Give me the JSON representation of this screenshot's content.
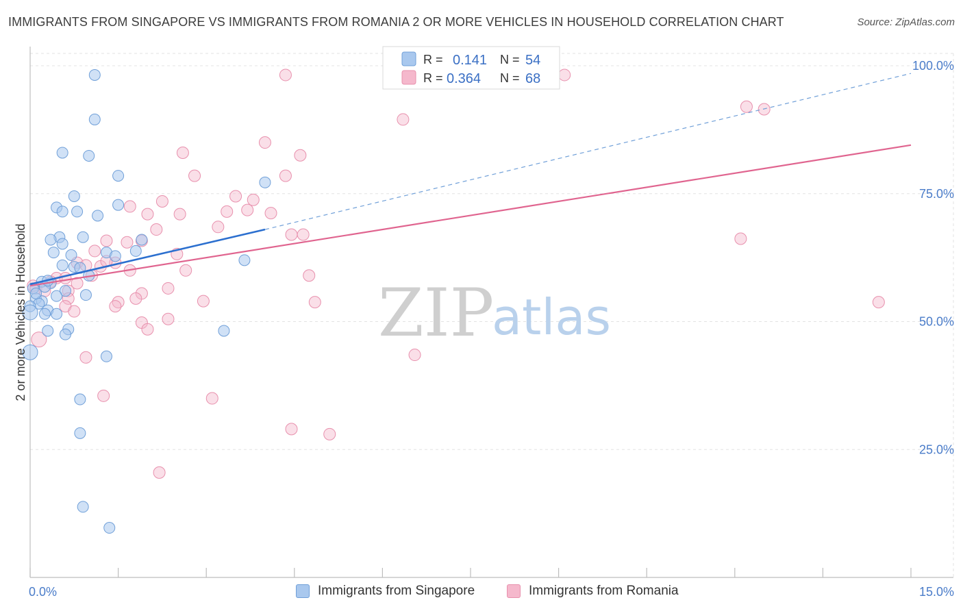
{
  "title": "IMMIGRANTS FROM SINGAPORE VS IMMIGRANTS FROM ROMANIA 2 OR MORE VEHICLES IN HOUSEHOLD CORRELATION CHART",
  "source": "Source: ZipAtlas.com",
  "watermark": {
    "zip": "ZIP",
    "atlas": "atlas"
  },
  "colors": {
    "singapore_fill": "#a9c8ee",
    "singapore_stroke": "#6f9fd8",
    "singapore_line": "#2b6fcf",
    "romania_fill": "#f5b8cc",
    "romania_stroke": "#e890ad",
    "romania_line": "#e0648f",
    "tick_text": "#4a7cc9"
  },
  "legend": {
    "singapore": {
      "r_label": "R =",
      "r_value": "0.141",
      "n_label": "N =",
      "n_value": "54"
    },
    "romania": {
      "r_label": "R =",
      "r_value": "0.364",
      "n_label": "N =",
      "n_value": "68"
    }
  },
  "bottom_legend": {
    "singapore": "Immigrants from Singapore",
    "romania": "Immigrants from Romania"
  },
  "chart_data": {
    "type": "scatter",
    "title": "IMMIGRANTS FROM SINGAPORE VS IMMIGRANTS FROM ROMANIA 2 OR MORE VEHICLES IN HOUSEHOLD CORRELATION CHART",
    "xlabel": "",
    "ylabel": "2 or more Vehicles in Household",
    "xlim": [
      0,
      15
    ],
    "ylim": [
      0,
      100
    ],
    "x_tick_labels": {
      "min": "0.0%",
      "max": "15.0%"
    },
    "y_ticks": [
      {
        "value": 25,
        "label": "25.0%"
      },
      {
        "value": 50,
        "label": "50.0%"
      },
      {
        "value": 75,
        "label": "75.0%"
      },
      {
        "value": 100,
        "label": "100.0%"
      }
    ],
    "grid": true,
    "series": [
      {
        "name": "Immigrants from Singapore",
        "r": 0.141,
        "n": 54,
        "trend": {
          "x0": 0.0,
          "y0": 57.3,
          "x1": 4.0,
          "y1": 68.0,
          "dashed_to_x": 15.0,
          "dashed_to_y": 98.5
        },
        "points": [
          {
            "x": 1.1,
            "y": 98.2
          },
          {
            "x": 1.1,
            "y": 89.5
          },
          {
            "x": 0.55,
            "y": 83.0
          },
          {
            "x": 1.0,
            "y": 82.4
          },
          {
            "x": 1.5,
            "y": 78.5
          },
          {
            "x": 4.0,
            "y": 77.2
          },
          {
            "x": 0.75,
            "y": 74.5
          },
          {
            "x": 1.5,
            "y": 72.8
          },
          {
            "x": 0.45,
            "y": 72.3
          },
          {
            "x": 0.55,
            "y": 71.5
          },
          {
            "x": 0.8,
            "y": 71.5
          },
          {
            "x": 1.15,
            "y": 70.7
          },
          {
            "x": 0.9,
            "y": 66.5
          },
          {
            "x": 0.5,
            "y": 66.5
          },
          {
            "x": 0.35,
            "y": 66.0
          },
          {
            "x": 0.55,
            "y": 65.2
          },
          {
            "x": 1.9,
            "y": 66.0
          },
          {
            "x": 1.8,
            "y": 63.8
          },
          {
            "x": 0.4,
            "y": 63.5
          },
          {
            "x": 0.7,
            "y": 63.0
          },
          {
            "x": 1.3,
            "y": 63.5
          },
          {
            "x": 1.45,
            "y": 62.8
          },
          {
            "x": 3.65,
            "y": 62.0
          },
          {
            "x": 0.55,
            "y": 61.0
          },
          {
            "x": 0.75,
            "y": 60.7
          },
          {
            "x": 0.85,
            "y": 60.5
          },
          {
            "x": 1.0,
            "y": 59.0
          },
          {
            "x": 0.2,
            "y": 57.8
          },
          {
            "x": 0.35,
            "y": 57.5
          },
          {
            "x": 0.25,
            "y": 56.8
          },
          {
            "x": 0.05,
            "y": 56.5
          },
          {
            "x": 0.6,
            "y": 56.0
          },
          {
            "x": 0.45,
            "y": 55.0
          },
          {
            "x": 0.95,
            "y": 55.2
          },
          {
            "x": 0.1,
            "y": 54.5
          },
          {
            "x": 0.2,
            "y": 54.0
          },
          {
            "x": 0.15,
            "y": 53.5
          },
          {
            "x": 0.0,
            "y": 53.0
          },
          {
            "x": 0.3,
            "y": 52.2
          },
          {
            "x": 0.25,
            "y": 51.5
          },
          {
            "x": 0.45,
            "y": 51.5
          },
          {
            "x": 0.0,
            "y": 51.8
          },
          {
            "x": 0.65,
            "y": 48.5
          },
          {
            "x": 0.3,
            "y": 48.2
          },
          {
            "x": 0.6,
            "y": 47.5
          },
          {
            "x": 3.3,
            "y": 48.2
          },
          {
            "x": 0.0,
            "y": 44.0
          },
          {
            "x": 1.3,
            "y": 43.2
          },
          {
            "x": 0.85,
            "y": 34.8
          },
          {
            "x": 0.85,
            "y": 28.2
          },
          {
            "x": 0.9,
            "y": 13.8
          },
          {
            "x": 1.35,
            "y": 9.7
          },
          {
            "x": 0.1,
            "y": 55.5
          },
          {
            "x": 0.3,
            "y": 58.0
          }
        ]
      },
      {
        "name": "Immigrants from Romania",
        "r": 0.364,
        "n": 68,
        "trend": {
          "x0": 0.0,
          "y0": 57.0,
          "x1": 15.0,
          "y1": 84.5
        },
        "points": [
          {
            "x": 4.35,
            "y": 98.2
          },
          {
            "x": 9.1,
            "y": 98.2
          },
          {
            "x": 6.35,
            "y": 89.5
          },
          {
            "x": 12.2,
            "y": 92.0
          },
          {
            "x": 12.5,
            "y": 91.5
          },
          {
            "x": 4.0,
            "y": 85.0
          },
          {
            "x": 2.6,
            "y": 83.0
          },
          {
            "x": 4.6,
            "y": 82.5
          },
          {
            "x": 2.8,
            "y": 78.5
          },
          {
            "x": 4.35,
            "y": 78.5
          },
          {
            "x": 3.5,
            "y": 74.5
          },
          {
            "x": 3.8,
            "y": 73.8
          },
          {
            "x": 2.25,
            "y": 73.5
          },
          {
            "x": 1.7,
            "y": 72.5
          },
          {
            "x": 3.7,
            "y": 71.8
          },
          {
            "x": 3.35,
            "y": 71.5
          },
          {
            "x": 4.1,
            "y": 71.2
          },
          {
            "x": 2.55,
            "y": 71.0
          },
          {
            "x": 2.0,
            "y": 71.0
          },
          {
            "x": 3.2,
            "y": 68.5
          },
          {
            "x": 2.15,
            "y": 68.0
          },
          {
            "x": 4.45,
            "y": 67.0
          },
          {
            "x": 4.65,
            "y": 67.0
          },
          {
            "x": 12.1,
            "y": 66.2
          },
          {
            "x": 1.3,
            "y": 65.8
          },
          {
            "x": 1.9,
            "y": 65.8
          },
          {
            "x": 1.65,
            "y": 65.5
          },
          {
            "x": 1.1,
            "y": 63.8
          },
          {
            "x": 2.5,
            "y": 63.2
          },
          {
            "x": 0.8,
            "y": 61.5
          },
          {
            "x": 0.95,
            "y": 61.0
          },
          {
            "x": 1.2,
            "y": 60.8
          },
          {
            "x": 1.45,
            "y": 61.5
          },
          {
            "x": 2.65,
            "y": 60.0
          },
          {
            "x": 1.7,
            "y": 60.0
          },
          {
            "x": 1.05,
            "y": 59.0
          },
          {
            "x": 4.75,
            "y": 59.0
          },
          {
            "x": 0.45,
            "y": 58.5
          },
          {
            "x": 0.6,
            "y": 58.5
          },
          {
            "x": 0.35,
            "y": 57.8
          },
          {
            "x": 0.8,
            "y": 57.5
          },
          {
            "x": 0.05,
            "y": 57.0
          },
          {
            "x": 0.1,
            "y": 56.5
          },
          {
            "x": 0.65,
            "y": 56.0
          },
          {
            "x": 2.35,
            "y": 56.5
          },
          {
            "x": 1.9,
            "y": 55.5
          },
          {
            "x": 1.8,
            "y": 54.5
          },
          {
            "x": 0.65,
            "y": 54.5
          },
          {
            "x": 2.95,
            "y": 54.0
          },
          {
            "x": 1.5,
            "y": 53.8
          },
          {
            "x": 4.85,
            "y": 53.8
          },
          {
            "x": 0.6,
            "y": 53.0
          },
          {
            "x": 1.45,
            "y": 53.0
          },
          {
            "x": 14.45,
            "y": 53.8
          },
          {
            "x": 0.75,
            "y": 52.0
          },
          {
            "x": 2.35,
            "y": 50.5
          },
          {
            "x": 1.9,
            "y": 49.8
          },
          {
            "x": 2.0,
            "y": 48.5
          },
          {
            "x": 0.15,
            "y": 46.5
          },
          {
            "x": 0.95,
            "y": 43.0
          },
          {
            "x": 6.55,
            "y": 43.5
          },
          {
            "x": 1.25,
            "y": 35.5
          },
          {
            "x": 3.1,
            "y": 35.0
          },
          {
            "x": 4.45,
            "y": 29.0
          },
          {
            "x": 5.1,
            "y": 28.0
          },
          {
            "x": 2.2,
            "y": 20.5
          },
          {
            "x": 1.3,
            "y": 61.8
          },
          {
            "x": 0.25,
            "y": 56.0
          }
        ]
      }
    ]
  }
}
